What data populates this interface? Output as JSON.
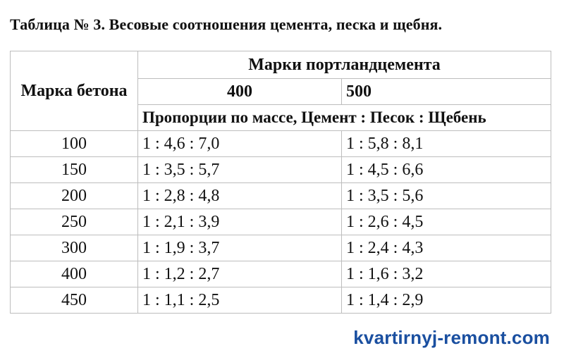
{
  "title": "Таблица № 3. Весовые соотношения цемента, песка и щебня.",
  "table": {
    "concrete_grade_header": "Марка бетона",
    "cement_grades_header": "Марки портландцемента",
    "cement_grades": [
      "400",
      "500"
    ],
    "proportions_header": "Пропорции по массе, Цемент : Песок : Щебень",
    "rows": [
      {
        "grade": "100",
        "m400": "1 : 4,6 : 7,0",
        "m500": "1 : 5,8 : 8,1"
      },
      {
        "grade": "150",
        "m400": "1 : 3,5 : 5,7",
        "m500": "1 : 4,5 : 6,6"
      },
      {
        "grade": "200",
        "m400": "1 : 2,8 : 4,8",
        "m500": "1 : 3,5 : 5,6"
      },
      {
        "grade": "250",
        "m400": "1 : 2,1 : 3,9",
        "m500": "1 : 2,6 : 4,5"
      },
      {
        "grade": "300",
        "m400": "1 : 1,9 : 3,7",
        "m500": "1 : 2,4 : 4,3"
      },
      {
        "grade": "400",
        "m400": "1 : 1,2 : 2,7",
        "m500": "1 : 1,6 : 3,2"
      },
      {
        "grade": "450",
        "m400": "1 : 1,1 : 2,5",
        "m500": "1 : 1,4 : 2,9"
      }
    ]
  },
  "watermark": "kvartirnyj-remont.com",
  "colors": {
    "watermark": "#1a4fa0",
    "border": "#bdbdbd",
    "text": "#111111"
  }
}
